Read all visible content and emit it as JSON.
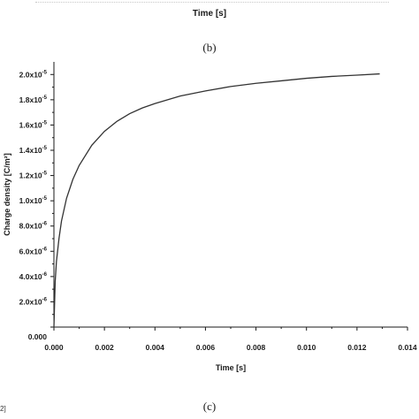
{
  "panel_b": {
    "xlabel": "Time [s]",
    "label": "(b)"
  },
  "panel_c_label": "(c)",
  "left_fragment": "2]",
  "chart_data": {
    "type": "line",
    "title": "",
    "xlabel": "Time [s]",
    "ylabel": "Charge density [C/m²]",
    "xlim": [
      0,
      0.014
    ],
    "ylim": [
      0,
      2.1e-05
    ],
    "x_ticks": [
      0,
      0.002,
      0.004,
      0.006,
      0.008,
      0.01,
      0.012,
      0.014
    ],
    "x_tick_labels": [
      "0.000",
      "0.002",
      "0.004",
      "0.006",
      "0.008",
      "0.010",
      "0.012",
      "0.014"
    ],
    "y_ticks": [
      0,
      2e-06,
      4e-06,
      6e-06,
      8e-06,
      1e-05,
      1.2e-05,
      1.4e-05,
      1.6e-05,
      1.8e-05,
      2e-05
    ],
    "y_tick_labels": [
      {
        "mantissa": "0.000",
        "exp": ""
      },
      {
        "mantissa": "2.0x10",
        "exp": "-6"
      },
      {
        "mantissa": "4.0x10",
        "exp": "-6"
      },
      {
        "mantissa": "6.0x10",
        "exp": "-6"
      },
      {
        "mantissa": "8.0x10",
        "exp": "-6"
      },
      {
        "mantissa": "1.0x10",
        "exp": "-5"
      },
      {
        "mantissa": "1.2x10",
        "exp": "-5"
      },
      {
        "mantissa": "1.4x10",
        "exp": "-5"
      },
      {
        "mantissa": "1.6x10",
        "exp": "-5"
      },
      {
        "mantissa": "1.8x10",
        "exp": "-5"
      },
      {
        "mantissa": "2.0x10",
        "exp": "-5"
      }
    ],
    "grid": false,
    "series": [
      {
        "color": "#333333",
        "x": [
          0,
          5e-05,
          0.0001,
          0.0002,
          0.0003,
          0.0005,
          0.00075,
          0.001,
          0.0015,
          0.002,
          0.0025,
          0.003,
          0.0035,
          0.004,
          0.005,
          0.006,
          0.007,
          0.008,
          0.009,
          0.01,
          0.011,
          0.012,
          0.0129
        ],
        "y": [
          0,
          3.6e-06,
          5.2e-06,
          7e-06,
          8.4e-06,
          1.02e-05,
          1.17e-05,
          1.28e-05,
          1.44e-05,
          1.55e-05,
          1.63e-05,
          1.69e-05,
          1.735e-05,
          1.77e-05,
          1.83e-05,
          1.87e-05,
          1.905e-05,
          1.93e-05,
          1.95e-05,
          1.97e-05,
          1.985e-05,
          1.995e-05,
          2.005e-05
        ]
      }
    ]
  }
}
